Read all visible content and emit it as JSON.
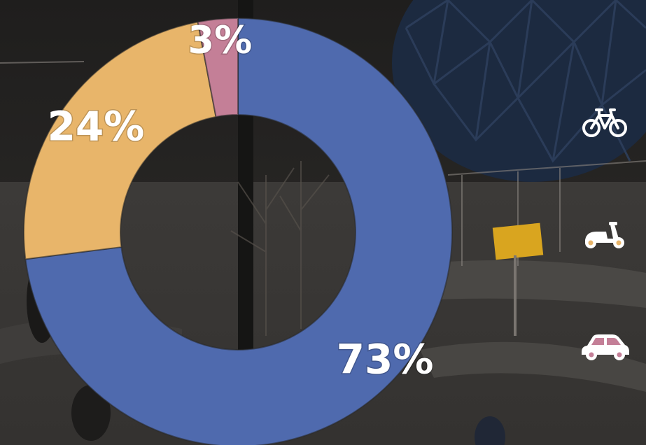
{
  "chart_data": {
    "type": "pie",
    "donut": true,
    "categories": [
      "bicycle",
      "scooter",
      "car"
    ],
    "values": [
      73,
      24,
      3
    ],
    "labels": [
      "73%",
      "24%",
      "3%"
    ],
    "colors": [
      "#4f6aae",
      "#e8b56a",
      "#c47f97"
    ]
  },
  "legend": [
    {
      "icon": "bicycle-icon",
      "color": "#4f6aae"
    },
    {
      "icon": "scooter-icon",
      "color": "#e8b56a"
    },
    {
      "icon": "car-icon",
      "color": "#c47f97"
    }
  ]
}
